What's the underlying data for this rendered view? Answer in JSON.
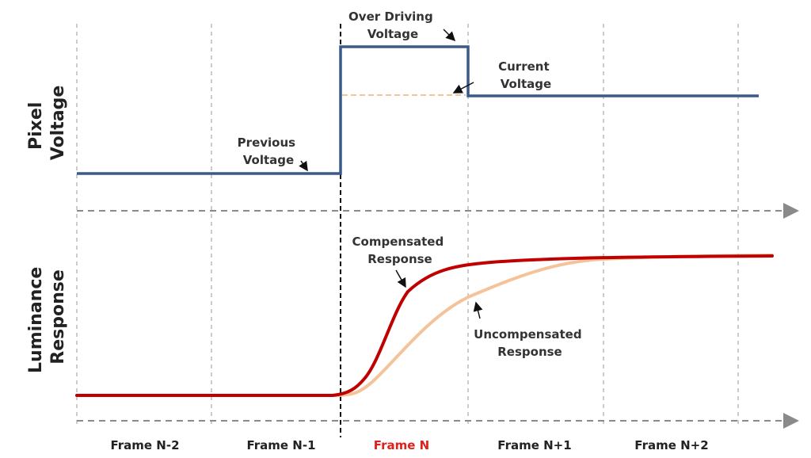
{
  "axis_titles": {
    "pixel_voltage": [
      "Pixel",
      "Voltage"
    ],
    "luminance_response": [
      "Luminance",
      "Response"
    ]
  },
  "annotations": {
    "over_driving_voltage": [
      "Over Driving",
      "Voltage"
    ],
    "current_voltage": [
      "Current",
      "Voltage"
    ],
    "previous_voltage": [
      "Previous",
      "Voltage"
    ],
    "compensated_response": [
      "Compensated",
      "Response"
    ],
    "uncompensated_response": [
      "Uncompensated",
      "Response"
    ]
  },
  "frames": [
    {
      "label": "Frame N-2",
      "color": "#222222"
    },
    {
      "label": "Frame N-1",
      "color": "#222222"
    },
    {
      "label": "Frame N",
      "color": "#e0201a"
    },
    {
      "label": "Frame N+1",
      "color": "#222222"
    },
    {
      "label": "Frame N+2",
      "color": "#222222"
    }
  ],
  "colors": {
    "voltage_line": "#3a5a8a",
    "compensated": "#c00000",
    "uncompensated": "#f5c399",
    "grid": "#9a9a9a"
  }
}
